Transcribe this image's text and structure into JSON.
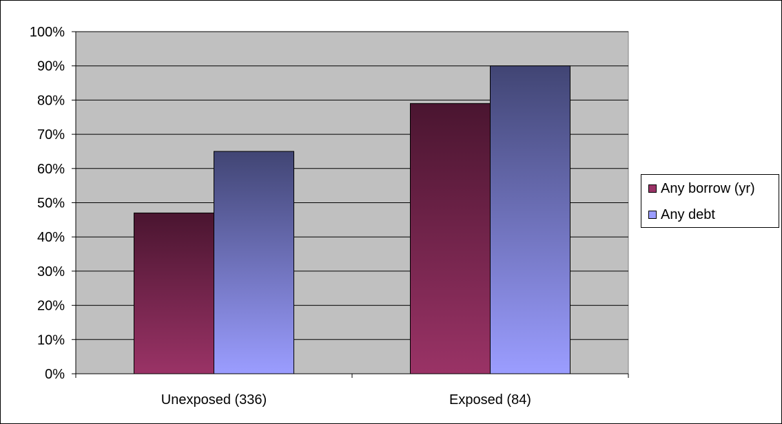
{
  "chart_data": {
    "type": "bar",
    "categories": [
      "Unexposed (336)",
      "Exposed (84)"
    ],
    "series": [
      {
        "name": "Any borrow (yr)",
        "values": [
          47,
          79
        ],
        "color_top": "#4a1530",
        "color_bottom": "#9a3366"
      },
      {
        "name": "Any debt",
        "values": [
          65,
          90
        ],
        "color_top": "#414574",
        "color_bottom": "#9b9dff"
      }
    ],
    "title": "",
    "xlabel": "",
    "ylabel": "",
    "ylim": [
      0,
      100
    ],
    "yticks": [
      "0%",
      "10%",
      "20%",
      "30%",
      "40%",
      "50%",
      "60%",
      "70%",
      "80%",
      "90%",
      "100%"
    ],
    "plot_background": "#c0c0c0",
    "grid": true,
    "legend_position": "right"
  }
}
